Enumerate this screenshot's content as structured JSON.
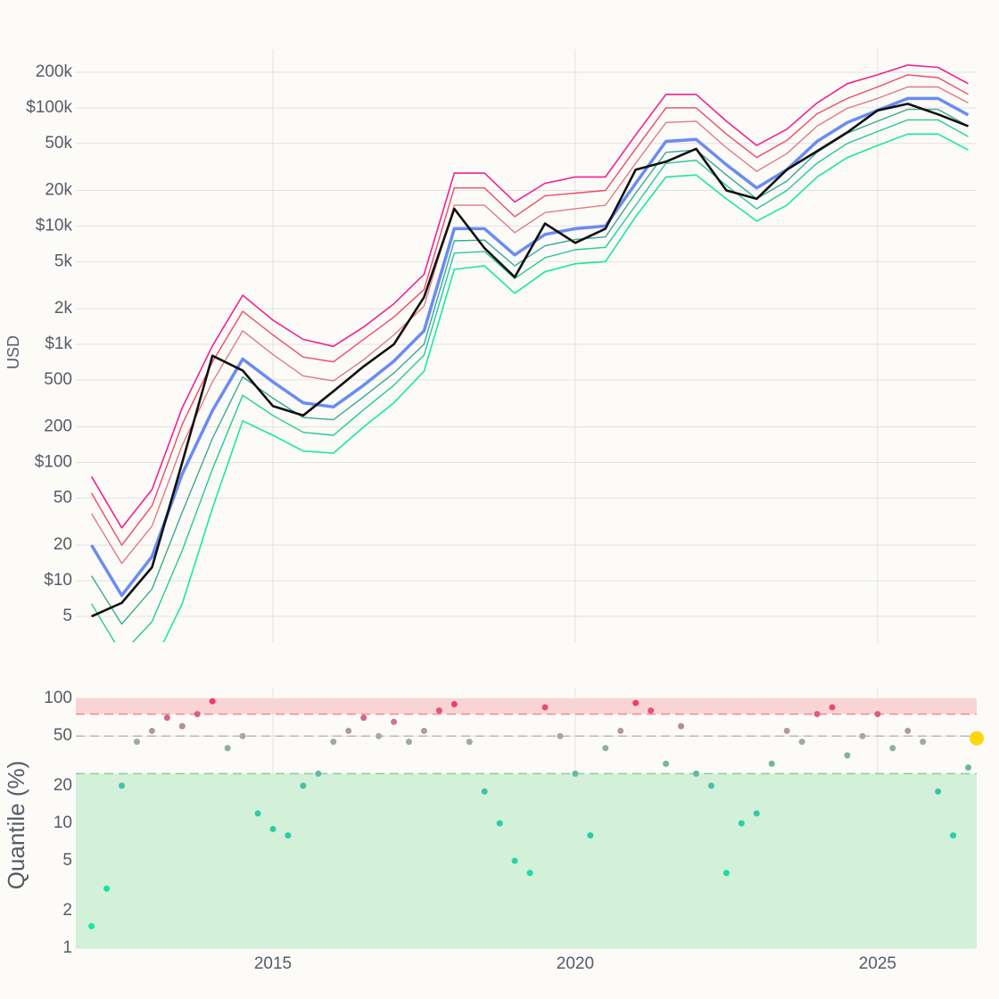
{
  "chart_data": [
    {
      "type": "line",
      "ylabel": "USD",
      "log_y": true,
      "grid": true,
      "x": [
        2012.0,
        2012.5,
        2013.0,
        2013.5,
        2014.0,
        2014.5,
        2015.0,
        2015.5,
        2016.0,
        2016.5,
        2017.0,
        2017.5,
        2018.0,
        2018.5,
        2019.0,
        2019.5,
        2020.0,
        2020.5,
        2021.0,
        2021.5,
        2022.0,
        2022.5,
        2023.0,
        2023.5,
        2024.0,
        2024.5,
        2025.0,
        2025.5,
        2026.0,
        2026.5
      ],
      "xlim": [
        2011.74,
        2026.64
      ],
      "xticks": [
        2015,
        2020,
        2025
      ],
      "ylim": [
        3.02,
        314000
      ],
      "yticks": [
        5,
        {
          "value": 10,
          "label": "$10"
        },
        20,
        50,
        {
          "value": 100,
          "label": "$100"
        },
        200,
        500,
        {
          "value": 1000,
          "label": "$1k"
        },
        {
          "value": 2000,
          "label": "2k"
        },
        {
          "value": 5000,
          "label": "5k"
        },
        {
          "value": 10000,
          "label": "$10k"
        },
        {
          "value": 20000,
          "label": "20k"
        },
        {
          "value": 50000,
          "label": "50k"
        },
        {
          "value": 100000,
          "label": "$100k"
        },
        {
          "value": 200000,
          "label": "200k"
        }
      ],
      "series": [
        {
          "color": "#f2228c",
          "width": 1.6,
          "values": [
            76,
            28,
            59,
            290,
            970,
            2600,
            1600,
            1100,
            960,
            1400,
            2200,
            3900,
            28000,
            28000,
            16000,
            23000,
            26000,
            26000,
            59000,
            130000,
            130000,
            77000,
            48000,
            66000,
            110000,
            160000,
            190000,
            230000,
            220000,
            160000
          ]
        },
        {
          "color": "#ee4a68",
          "width": 1.4,
          "values": [
            55,
            20,
            43,
            210,
            710,
            1900,
            1200,
            780,
            710,
            1100,
            1700,
            2900,
            21000,
            21000,
            12000,
            18000,
            19000,
            20000,
            45000,
            100000,
            100000,
            60000,
            38000,
            53000,
            89000,
            120000,
            150000,
            190000,
            180000,
            130000
          ]
        },
        {
          "color": "#e07a86",
          "width": 1.4,
          "values": [
            37,
            14,
            29,
            140,
            480,
            1300,
            820,
            540,
            490,
            740,
            1200,
            2100,
            15000,
            15000,
            8800,
            13000,
            14000,
            15000,
            34000,
            75000,
            77000,
            46000,
            29000,
            41000,
            70000,
            99000,
            120000,
            150000,
            150000,
            110000
          ]
        },
        {
          "color": "#6a8cf2",
          "width": 3.5,
          "values": [
            20,
            7.5,
            16,
            80,
            275,
            750,
            480,
            320,
            295,
            450,
            720,
            1300,
            9500,
            9500,
            5700,
            8500,
            9500,
            10000,
            23000,
            52000,
            54000,
            33000,
            21000,
            30000,
            52000,
            75000,
            95000,
            120000,
            120000,
            87000
          ]
        },
        {
          "color": "#3aa898",
          "width": 1.4,
          "values": [
            11,
            4.3,
            8.5,
            38,
            160,
            530,
            350,
            240,
            230,
            360,
            570,
            1000,
            7500,
            7600,
            4600,
            6800,
            7700,
            8100,
            19000,
            42000,
            44000,
            27000,
            17000,
            24000,
            42000,
            61000,
            77000,
            97000,
            97000,
            70000
          ]
        },
        {
          "color": "#22c99e",
          "width": 1.4,
          "values": [
            6.4,
            2.4,
            4.5,
            18,
            88,
            370,
            250,
            180,
            170,
            280,
            450,
            810,
            5900,
            6100,
            3600,
            5400,
            6300,
            6600,
            15000,
            34000,
            36000,
            22000,
            14000,
            20000,
            34000,
            50000,
            63000,
            79000,
            79000,
            57000
          ]
        },
        {
          "color": "#17e8a2",
          "width": 1.6,
          "values": [
            3,
            1.1,
            1.9,
            6.4,
            41,
            225,
            170,
            125,
            120,
            200,
            320,
            590,
            4300,
            4600,
            2700,
            4100,
            4800,
            5000,
            12000,
            26000,
            27000,
            17000,
            11000,
            15000,
            26000,
            38000,
            48000,
            60000,
            60000,
            44000
          ]
        },
        {
          "color": "#111111",
          "width": 2.6,
          "values": [
            5,
            6.5,
            13,
            100,
            800,
            600,
            300,
            250,
            400,
            650,
            1000,
            2500,
            14000,
            6500,
            3700,
            10500,
            7200,
            9500,
            30000,
            35000,
            45000,
            20000,
            17000,
            30000,
            43000,
            62000,
            95000,
            108000,
            88000,
            70000
          ]
        }
      ]
    },
    {
      "type": "scatter",
      "ylabel": "Quantile (%)",
      "log_y": true,
      "grid": true,
      "x": [
        2012.0,
        2012.25,
        2012.5,
        2012.75,
        2013.0,
        2013.25,
        2013.5,
        2013.75,
        2014.0,
        2014.25,
        2014.5,
        2014.75,
        2015.0,
        2015.25,
        2015.5,
        2015.75,
        2016.0,
        2016.25,
        2016.5,
        2016.75,
        2017.0,
        2017.25,
        2017.5,
        2017.75,
        2018.0,
        2018.25,
        2018.5,
        2018.75,
        2019.0,
        2019.25,
        2019.5,
        2019.75,
        2020.0,
        2020.25,
        2020.5,
        2020.75,
        2021.0,
        2021.25,
        2021.5,
        2021.75,
        2022.0,
        2022.25,
        2022.5,
        2022.75,
        2023.0,
        2023.25,
        2023.5,
        2023.75,
        2024.0,
        2024.25,
        2024.5,
        2024.75,
        2025.0,
        2025.25,
        2025.5,
        2025.75,
        2026.0,
        2026.25,
        2026.5
      ],
      "values": [
        1.5,
        3,
        20,
        45,
        55,
        70,
        60,
        75,
        95,
        40,
        50,
        12,
        9,
        8,
        20,
        25,
        45,
        55,
        70,
        50,
        65,
        45,
        55,
        80,
        90,
        45,
        18,
        10,
        5,
        4,
        85,
        50,
        25,
        8,
        40,
        55,
        92,
        80,
        30,
        60,
        25,
        20,
        4,
        10,
        12,
        30,
        55,
        45,
        75,
        85,
        35,
        50,
        75,
        40,
        55,
        45,
        18,
        8,
        28
      ],
      "xlim": [
        2011.74,
        2026.64
      ],
      "xticks": [
        2015,
        2020,
        2025
      ],
      "ylim": [
        1,
        120
      ],
      "yticks": [
        1,
        2,
        5,
        10,
        20,
        50,
        100
      ],
      "bands": [
        {
          "from": 75,
          "to": 100,
          "color": "#f9d4d4"
        },
        {
          "from": 1,
          "to": 25,
          "color": "#d3f0d8"
        }
      ],
      "reference_lines": [
        {
          "value": 75,
          "color": "#ee8c8c"
        },
        {
          "value": 50,
          "color": "#b8b8b8"
        },
        {
          "value": 25,
          "color": "#86cf9a"
        }
      ],
      "colorscale": [
        [
          0,
          "#08f2a2"
        ],
        [
          0.6,
          "#34c4a4"
        ],
        [
          0.85,
          "#a6a8a8"
        ],
        [
          1,
          "#ff2a6a"
        ]
      ],
      "current": {
        "x": 2026.64,
        "value": 48,
        "color": "#ffd60a"
      }
    }
  ]
}
